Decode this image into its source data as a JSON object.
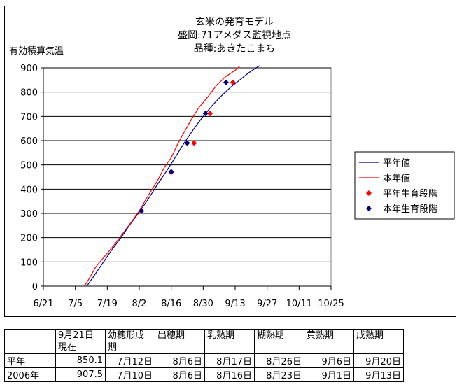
{
  "chart_data": {
    "type": "line",
    "title_lines": [
      "玄米の発育モデル",
      "盛岡:71アメダス監視地点",
      "品種:あきたこまち"
    ],
    "ylabel": "有効積算気温",
    "xlabel": "",
    "ylim": [
      0,
      900
    ],
    "yticks": [
      0,
      100,
      200,
      300,
      400,
      500,
      600,
      700,
      800,
      900
    ],
    "x_domain_days": [
      0,
      126
    ],
    "xticks": [
      {
        "label": "6/21",
        "day": 0
      },
      {
        "label": "7/5",
        "day": 14
      },
      {
        "label": "7/19",
        "day": 28
      },
      {
        "label": "8/2",
        "day": 42
      },
      {
        "label": "8/16",
        "day": 56
      },
      {
        "label": "8/30",
        "day": 70
      },
      {
        "label": "9/13",
        "day": 84
      },
      {
        "label": "9/27",
        "day": 98
      },
      {
        "label": "10/11",
        "day": 112
      },
      {
        "label": "10/25",
        "day": 126
      }
    ],
    "grid": true,
    "legend_position": "right",
    "series": [
      {
        "name": "平年値",
        "kind": "line",
        "color": "#000080",
        "points": [
          [
            19,
            0
          ],
          [
            22,
            40
          ],
          [
            26,
            95
          ],
          [
            30,
            150
          ],
          [
            34,
            200
          ],
          [
            38,
            255
          ],
          [
            42,
            305
          ],
          [
            46,
            360
          ],
          [
            50,
            420
          ],
          [
            54,
            475
          ],
          [
            58,
            535
          ],
          [
            62,
            595
          ],
          [
            66,
            650
          ],
          [
            70,
            700
          ],
          [
            74,
            745
          ],
          [
            78,
            785
          ],
          [
            82,
            820
          ],
          [
            86,
            850
          ],
          [
            90,
            880
          ],
          [
            94,
            905
          ],
          [
            95,
            910
          ]
        ]
      },
      {
        "name": "本年値",
        "kind": "line",
        "color": "#ff0000",
        "points": [
          [
            18,
            0
          ],
          [
            20,
            30
          ],
          [
            23,
            80
          ],
          [
            27,
            125
          ],
          [
            31,
            170
          ],
          [
            35,
            220
          ],
          [
            39,
            270
          ],
          [
            42,
            310
          ],
          [
            46,
            375
          ],
          [
            50,
            435
          ],
          [
            53,
            490
          ],
          [
            56,
            530
          ],
          [
            59,
            590
          ],
          [
            62,
            640
          ],
          [
            65,
            690
          ],
          [
            68,
            735
          ],
          [
            72,
            780
          ],
          [
            76,
            830
          ],
          [
            80,
            865
          ],
          [
            84,
            890
          ],
          [
            86,
            907
          ]
        ]
      },
      {
        "name": "平年生育段階",
        "kind": "marker",
        "color": "#ff0000",
        "points": [
          [
            56,
            470
          ],
          [
            66,
            590
          ],
          [
            73,
            712
          ],
          [
            83,
            840
          ]
        ]
      },
      {
        "name": "本年生育段階",
        "kind": "marker",
        "color": "#000080",
        "points": [
          [
            43,
            310
          ],
          [
            56,
            472
          ],
          [
            63,
            590
          ],
          [
            71,
            712
          ],
          [
            80,
            840
          ]
        ]
      }
    ]
  },
  "table": {
    "headers": [
      "",
      "9月21日\n現在",
      "幼穂形成\n期",
      "出穂期",
      "乳熟期",
      "糊熟期",
      "黄熟期",
      "成熟期"
    ],
    "rows": [
      [
        "平年",
        "850.1",
        "7月12日",
        "8月6日",
        "8月17日",
        "8月26日",
        "9月6日",
        "9月20日"
      ],
      [
        "2006年",
        "907.5",
        "7月10日",
        "8月6日",
        "8月16日",
        "8月23日",
        "9月1日",
        "9月13日"
      ]
    ]
  }
}
